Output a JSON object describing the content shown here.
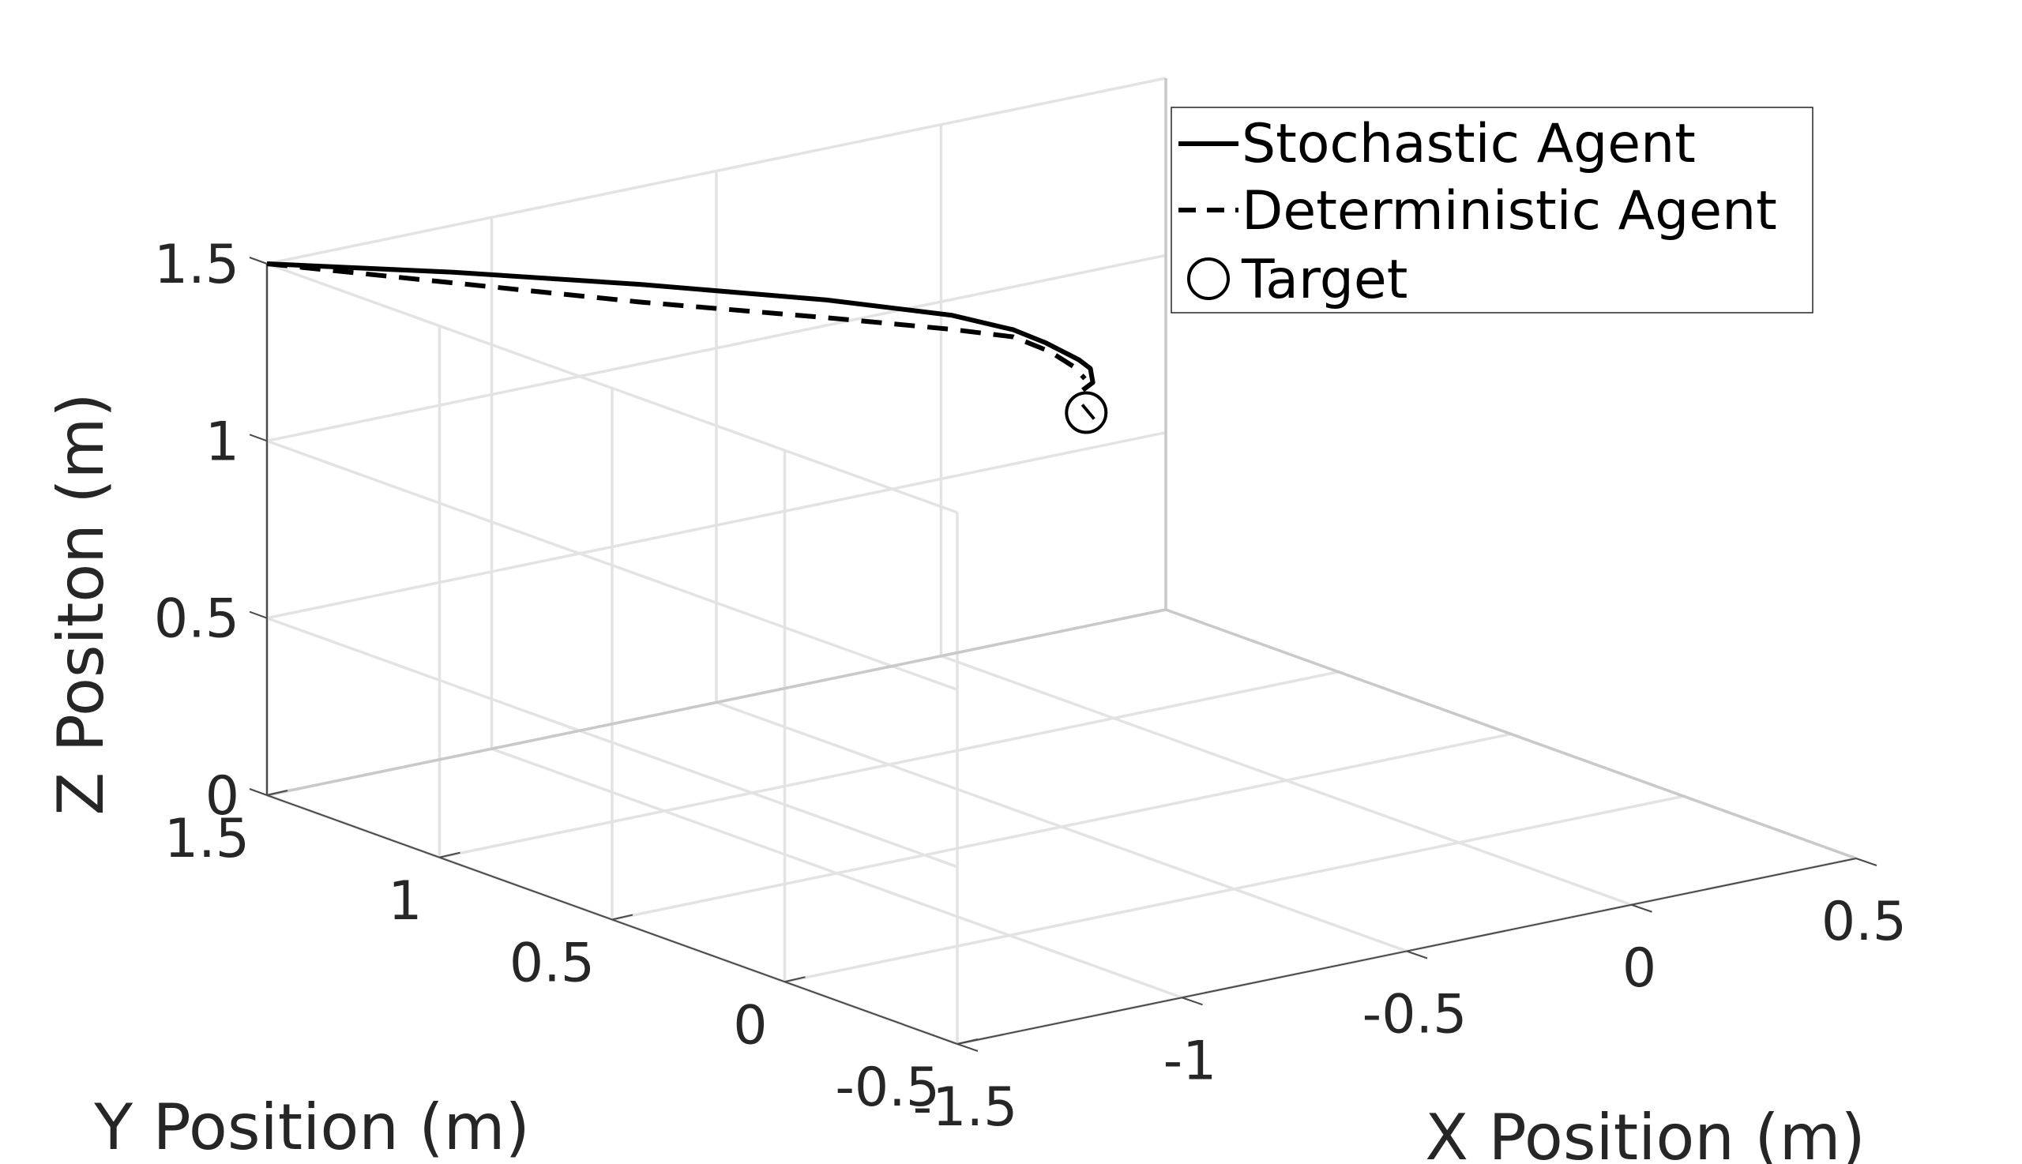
{
  "chart_data": {
    "type": "line3d",
    "title": "",
    "xlabel": "X Position (m)",
    "ylabel": "Y Position (m)",
    "zlabel": "Z Positon (m)",
    "xlim": [
      -1.5,
      0.5
    ],
    "ylim": [
      -0.5,
      1.5
    ],
    "zlim": [
      0,
      1.5
    ],
    "x_ticks": [
      "-1.5",
      "-1",
      "-0.5",
      "0",
      "0.5"
    ],
    "y_ticks": [
      "-0.5",
      "0",
      "0.5",
      "1",
      "1.5"
    ],
    "z_ticks": [
      "0",
      "0.5",
      "1",
      "1.5"
    ],
    "x_tick_values": [
      -1.5,
      -1,
      -0.5,
      0,
      0.5
    ],
    "y_tick_values": [
      -0.5,
      0,
      0.5,
      1,
      1.5
    ],
    "z_tick_values": [
      0,
      0.5,
      1,
      1.5
    ],
    "grid": true,
    "legend_position": "top-right",
    "series": [
      {
        "name": "Stochastic Agent",
        "style": "solid",
        "color": "#000000",
        "x": [
          -1.5,
          -1.2,
          -0.9,
          -0.6,
          -0.4,
          -0.3,
          -0.25,
          -0.2,
          -0.19,
          -0.2,
          -0.23
        ],
        "y": [
          1.5,
          1.35,
          1.2,
          1.05,
          0.95,
          0.9,
          0.87,
          0.84,
          0.82,
          0.8,
          0.79
        ],
        "z": [
          1.5,
          1.45,
          1.39,
          1.32,
          1.26,
          1.21,
          1.17,
          1.12,
          1.1,
          1.07,
          1.06
        ]
      },
      {
        "name": "Deterministic Agent",
        "style": "dashed",
        "color": "#000000",
        "x": [
          -1.5,
          -1.2,
          -0.9,
          -0.6,
          -0.4,
          -0.3,
          -0.25,
          -0.22,
          -0.21
        ],
        "y": [
          1.5,
          1.35,
          1.2,
          1.05,
          0.95,
          0.9,
          0.86,
          0.83,
          0.81
        ],
        "z": [
          1.5,
          1.42,
          1.34,
          1.27,
          1.22,
          1.19,
          1.15,
          1.11,
          1.08
        ]
      },
      {
        "name": "Target",
        "style": "marker-circle",
        "color": "#000000",
        "x": [
          -0.23
        ],
        "y": [
          0.78
        ],
        "z": [
          1.0
        ]
      }
    ]
  }
}
